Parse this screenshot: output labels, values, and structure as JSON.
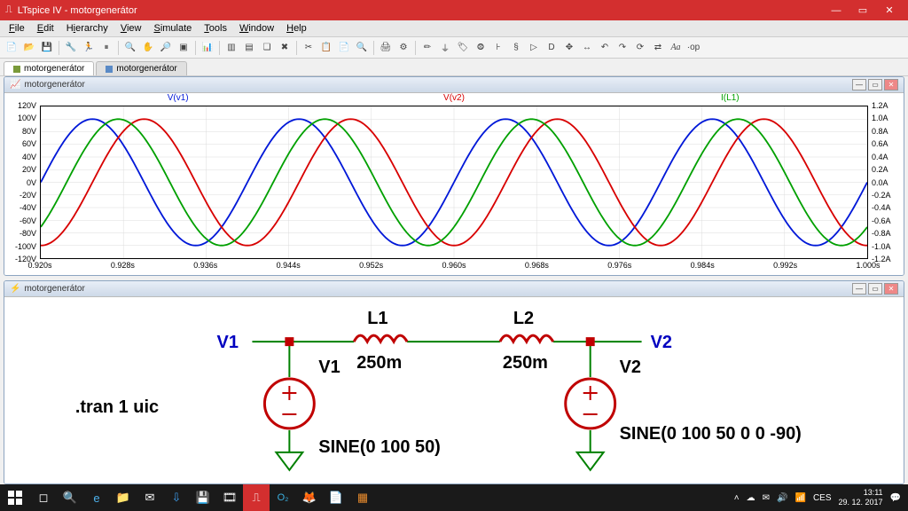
{
  "app": {
    "title": "LTspice IV - motorgenerátor"
  },
  "menu": [
    "File",
    "Edit",
    "Hierarchy",
    "View",
    "Simulate",
    "Tools",
    "Window",
    "Help"
  ],
  "tabs": [
    {
      "label": "motorgenerátor",
      "active": true,
      "icon": "#7a9a3a"
    },
    {
      "label": "motorgenerátor",
      "active": false,
      "icon": "#5a8ac6"
    }
  ],
  "plot": {
    "title": "motorgenerátor",
    "traces": [
      {
        "label": "V(v1)",
        "color": "#0018d8",
        "amp": 100,
        "freq": 50,
        "phase": 0,
        "axis": "left"
      },
      {
        "label": "V(v2)",
        "color": "#d80000",
        "amp": 100,
        "freq": 50,
        "phase": -90,
        "axis": "left"
      },
      {
        "label": "I(L1)",
        "color": "#00a000",
        "amp": 1.0,
        "freq": 50,
        "phase": -45,
        "scale": 100,
        "axis": "right"
      }
    ],
    "xlim": [
      0.92,
      1.0
    ],
    "xtick_step": 0.008,
    "x_unit": "s",
    "ylim_left": [
      -120,
      120
    ],
    "ytick_left_step": 20,
    "y_left_unit": "V",
    "ylim_right": [
      -1.2,
      1.2
    ],
    "ytick_right_step": 0.2,
    "y_right_unit": "A",
    "bg": "#ffffff",
    "grid": "#dcdcdc"
  },
  "schematic": {
    "title": "motorgenerátor",
    "directive": ".tran 1 uic",
    "wire_color": "#008000",
    "comp_color": "#c00000",
    "text_color": "#0000c0",
    "v1": {
      "name": "V1",
      "value": "SINE(0 100 50)"
    },
    "v2": {
      "name": "V2",
      "value": "SINE(0 100 50 0 0 -90)"
    },
    "l1": {
      "name": "L1",
      "value": "250m"
    },
    "l2": {
      "name": "L2",
      "value": "250m"
    },
    "net_v1": "V1",
    "net_v2": "V2"
  },
  "taskbar": {
    "time": "13:11",
    "date": "29. 12. 2017",
    "lang": "CES",
    "icons": [
      "⊞",
      "◻",
      "🔍",
      "e",
      "📁",
      "✉",
      "⇩",
      "💾",
      "🎞",
      "🔴",
      "O₂",
      "🦊",
      "📄",
      "🟧"
    ]
  },
  "tray": [
    "˄",
    "☁",
    "✉",
    "🔊",
    "📶",
    "🔋"
  ]
}
